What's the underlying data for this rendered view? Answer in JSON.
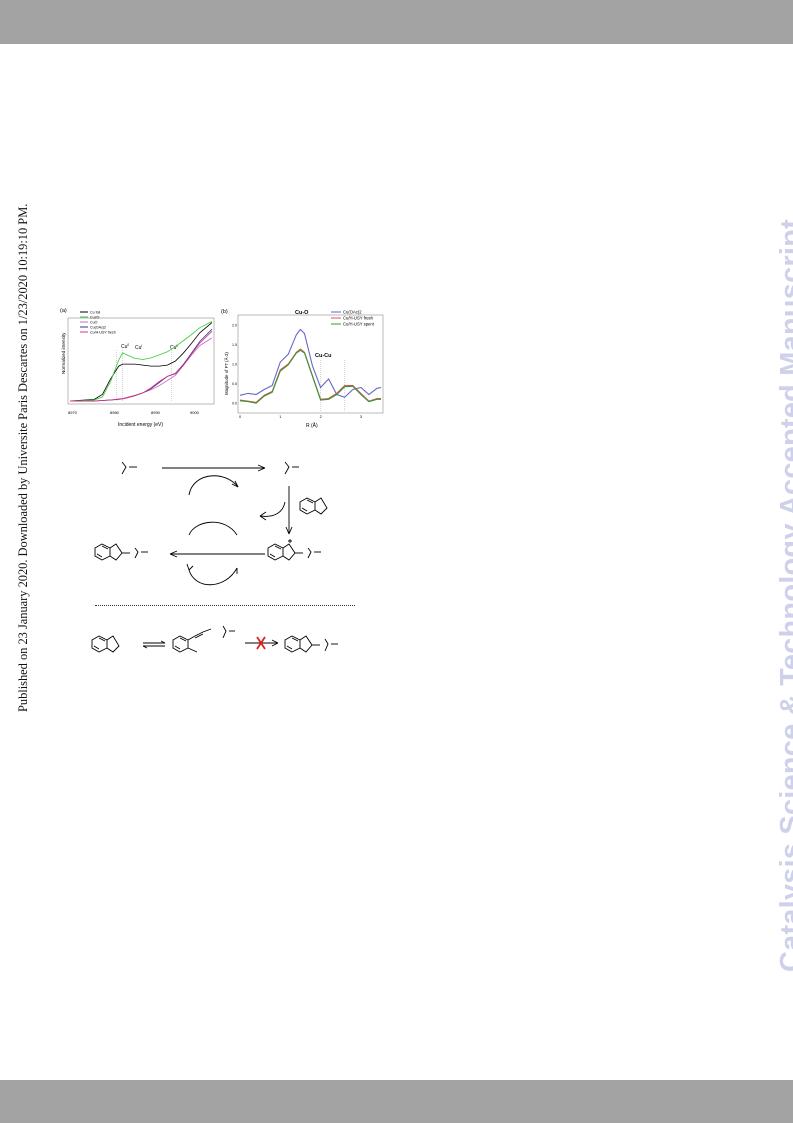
{
  "page": {
    "published_note": "Published on 23 January 2020. Downloaded by Universite Paris Descartes on 1/23/2020 10:19:10 PM.",
    "watermark": "Catalysis Science & Technology Accepted Manuscript"
  },
  "colors": {
    "band": "#a3a3a3",
    "watermark": "#cfd1ea"
  },
  "figure_a": {
    "panel_label": "(a)",
    "legend": [
      "Cu foil",
      "Cu2O",
      "CuO",
      "Cu(OAc)2",
      "Cu/H-USY fresh"
    ],
    "ylabel": "Normalized intensity",
    "xlabel": "Incident energy (eV)",
    "annotations": {
      "cu0": "Cu",
      "cu0_sup": "0",
      "cu1": "Cu",
      "cu1_sup": "I",
      "cu2": "Cu",
      "cu2_sup": "II"
    },
    "xticks": [
      "8970",
      "8980",
      "8990",
      "9000"
    ]
  },
  "figure_b": {
    "panel_label": "(b)",
    "legend": [
      "Cu(OAc)2",
      "Cu/H-USY fresh",
      "Cu/H-USY spent"
    ],
    "ylabel": "Magnitude of FT (Å-3)",
    "xlabel": "R (Å)",
    "peak_cuo": "Cu-O",
    "peak_cucu": "Cu-Cu",
    "yticks": [
      "0.0",
      "0.5",
      "1.0",
      "1.5",
      "2.0"
    ],
    "xticks": [
      "0",
      "1",
      "2",
      "3"
    ]
  },
  "chart_data": [
    {
      "type": "line",
      "title": "",
      "xlabel": "Incident energy (eV)",
      "ylabel": "Normalized intensity",
      "xlim": [
        8970,
        9005
      ],
      "x": [
        8970,
        8976,
        8978,
        8980,
        8982,
        8983,
        8984,
        8986,
        8988,
        8990,
        8992,
        8994,
        8996,
        8998,
        9000,
        9002,
        9005
      ],
      "series": [
        {
          "name": "Cu foil",
          "color": "#000000",
          "values": [
            0.02,
            0.05,
            0.15,
            0.45,
            0.7,
            0.74,
            0.74,
            0.74,
            0.72,
            0.7,
            0.7,
            0.72,
            0.8,
            0.96,
            1.15,
            1.35,
            1.55
          ]
        },
        {
          "name": "Cu2O",
          "color": "#33cc33",
          "values": [
            0.02,
            0.04,
            0.1,
            0.4,
            0.82,
            0.96,
            0.92,
            0.85,
            0.83,
            0.86,
            0.92,
            0.98,
            1.08,
            1.2,
            1.32,
            1.45,
            1.57
          ]
        },
        {
          "name": "CuO",
          "color": "#cc66cc",
          "values": [
            0.02,
            0.02,
            0.03,
            0.04,
            0.06,
            0.07,
            0.09,
            0.13,
            0.18,
            0.24,
            0.32,
            0.42,
            0.52,
            0.72,
            0.92,
            1.1,
            1.25
          ]
        },
        {
          "name": "Cu(OAc)2",
          "color": "#333399",
          "values": [
            0.02,
            0.02,
            0.03,
            0.04,
            0.05,
            0.06,
            0.08,
            0.12,
            0.18,
            0.26,
            0.38,
            0.5,
            0.56,
            0.74,
            0.96,
            1.18,
            1.42
          ]
        },
        {
          "name": "Cu/H-USY fresh",
          "color": "#dd3377",
          "values": [
            0.02,
            0.02,
            0.03,
            0.04,
            0.05,
            0.06,
            0.08,
            0.12,
            0.18,
            0.28,
            0.4,
            0.5,
            0.55,
            0.72,
            0.94,
            1.15,
            1.38
          ]
        }
      ]
    },
    {
      "type": "line",
      "title": "",
      "xlabel": "R (Å)",
      "ylabel": "Magnitude of FT (Å-3)",
      "xlim": [
        0,
        3.5
      ],
      "ylim": [
        -0.2,
        2.2
      ],
      "x": [
        0.0,
        0.2,
        0.4,
        0.6,
        0.8,
        1.0,
        1.2,
        1.4,
        1.5,
        1.6,
        1.8,
        2.0,
        2.2,
        2.4,
        2.6,
        2.8,
        3.0,
        3.2,
        3.4,
        3.5
      ],
      "series": [
        {
          "name": "Cu(OAc)2",
          "color": "#6666cc",
          "values": [
            0.2,
            0.25,
            0.22,
            0.35,
            0.45,
            1.05,
            1.25,
            1.75,
            1.88,
            1.78,
            0.95,
            0.4,
            0.62,
            0.22,
            0.15,
            0.35,
            0.4,
            0.22,
            0.38,
            0.4
          ]
        },
        {
          "name": "Cu/H-USY fresh",
          "color": "#dd5555",
          "values": [
            0.08,
            0.05,
            0.02,
            0.2,
            0.3,
            0.85,
            1.0,
            1.3,
            1.38,
            1.3,
            0.7,
            0.1,
            0.12,
            0.25,
            0.45,
            0.45,
            0.25,
            0.05,
            0.12,
            0.12
          ]
        },
        {
          "name": "Cu/H-USY spent",
          "color": "#339933",
          "values": [
            0.06,
            0.04,
            0.0,
            0.18,
            0.28,
            0.82,
            0.98,
            1.28,
            1.35,
            1.28,
            0.68,
            0.08,
            0.1,
            0.22,
            0.42,
            0.43,
            0.22,
            0.04,
            0.1,
            0.1
          ]
        }
      ]
    }
  ]
}
